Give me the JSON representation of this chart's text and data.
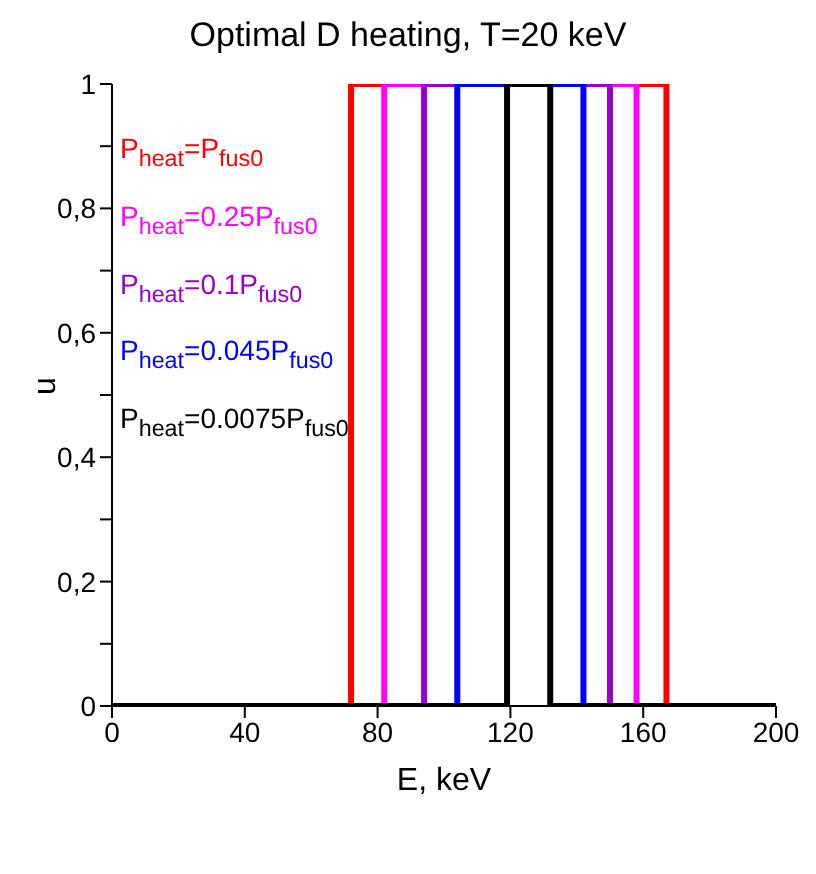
{
  "chart_data": {
    "type": "step",
    "title": "Optimal D heating, T=20 keV",
    "xlabel": "E, keV",
    "ylabel": "u",
    "xlim": [
      0,
      200
    ],
    "xticks": [
      0,
      40,
      80,
      120,
      160,
      200
    ],
    "ylim": [
      0,
      1
    ],
    "yticks": [
      0,
      {
        "value": 0.1,
        "label": null
      },
      {
        "value": 0.2,
        "label": "0,2"
      },
      {
        "value": 0.3,
        "label": null
      },
      {
        "value": 0.4,
        "label": "0,4"
      },
      {
        "value": 0.5,
        "label": null
      },
      {
        "value": 0.6,
        "label": "0,6"
      },
      {
        "value": 0.7,
        "label": null
      },
      {
        "value": 0.8,
        "label": "0,8"
      },
      {
        "value": 0.9,
        "label": null
      },
      1
    ],
    "grid": false,
    "legend": "top left",
    "marker": "none",
    "line_style": "solid",
    "series": [
      {
        "name": "P$_{heat}$=P$_{fus0}$",
        "color": "#ff0000",
        "x": [
          0,
          72,
          167,
          200
        ],
        "values": [
          0,
          1,
          0,
          0
        ]
      },
      {
        "name": "P$_{heat}$=0.25P$_{fus0}$",
        "color": "#ff00ff",
        "x": [
          0,
          82,
          158,
          200
        ],
        "values": [
          0,
          1,
          0,
          0
        ]
      },
      {
        "name": "P$_{heat}$=0.1P$_{fus0}$",
        "color": "#9900cc",
        "x": [
          0,
          94,
          150,
          200
        ],
        "values": [
          0,
          1,
          0,
          0
        ]
      },
      {
        "name": "P$_{heat}$=0.045P$_{fus0}$",
        "color": "#0000ff",
        "x": [
          0,
          104,
          142,
          200
        ],
        "values": [
          0,
          1,
          0,
          0
        ]
      },
      {
        "name": "P$_{heat}$=0.0075P$_{fus0}$",
        "color": "#000000",
        "x": [
          0,
          119,
          132,
          200
        ],
        "values": [
          0,
          1,
          0,
          0
        ]
      }
    ]
  }
}
